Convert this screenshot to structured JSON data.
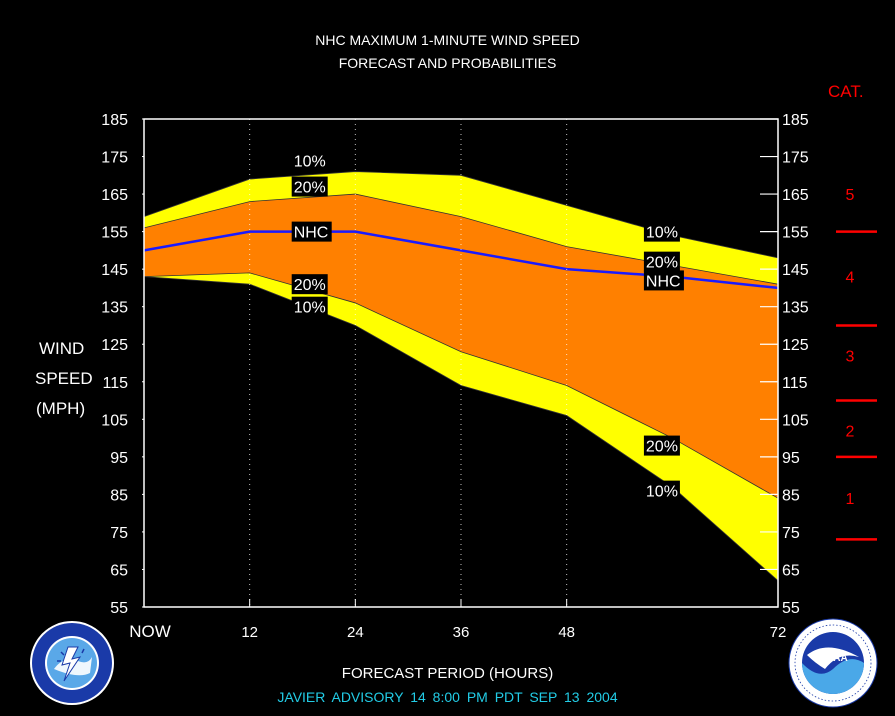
{
  "title_lines": [
    "NHC MAXIMUM 1-MINUTE WIND SPEED",
    "FORECAST AND PROBABILITIES"
  ],
  "ylabel_lines": [
    "WIND",
    "SPEED",
    "(MPH)"
  ],
  "xlabel": "FORECAST PERIOD (HOURS)",
  "footer": "JAVIER   ADVISORY  14 8:00  PM  PDT  SEP  13  2004",
  "category_header": "CAT.",
  "colors": {
    "band_10": "#ffff00",
    "band_20": "#ff8000",
    "nhc_line": "#1a1aff",
    "category": "#ff0000",
    "footer": "#22cce6"
  },
  "chart_data": {
    "type": "area",
    "x_tick_labels": [
      "NOW",
      "12",
      "24",
      "36",
      "48",
      "72"
    ],
    "x_ticks": [
      0,
      12,
      24,
      36,
      48,
      72
    ],
    "xlim": [
      0,
      72
    ],
    "ylim": [
      55,
      185
    ],
    "y_ticks": [
      55,
      65,
      75,
      85,
      95,
      105,
      115,
      125,
      135,
      145,
      155,
      165,
      175,
      185
    ],
    "grid": "vertical dotted at forecast hours",
    "x": [
      0,
      12,
      24,
      36,
      48,
      60,
      72
    ],
    "series": [
      {
        "name": "10%",
        "values": [
          159,
          169,
          171,
          170,
          162,
          154,
          148
        ]
      },
      {
        "name": "20%",
        "values": [
          156,
          163,
          165,
          159,
          151,
          146,
          141
        ]
      },
      {
        "name": "NHC",
        "values": [
          150,
          155,
          155,
          150,
          145,
          143,
          140
        ]
      },
      {
        "name": "20%",
        "values": [
          143,
          144,
          136,
          123,
          114,
          100,
          84
        ]
      },
      {
        "name": "10%",
        "values": [
          143,
          141,
          130,
          114,
          106,
          87,
          62
        ]
      }
    ],
    "annotations": [
      {
        "text": "10%",
        "x": 17,
        "y": 174
      },
      {
        "text": "20%",
        "x": 17,
        "y": 167
      },
      {
        "text": "NHC",
        "x": 17,
        "y": 155
      },
      {
        "text": "20%",
        "x": 17,
        "y": 141
      },
      {
        "text": "10%",
        "x": 17,
        "y": 135
      },
      {
        "text": "10%",
        "x": 57,
        "y": 155
      },
      {
        "text": "20%",
        "x": 57,
        "y": 147
      },
      {
        "text": "NHC",
        "x": 57,
        "y": 142
      },
      {
        "text": "20%",
        "x": 57,
        "y": 98
      },
      {
        "text": "10%",
        "x": 57,
        "y": 86
      }
    ],
    "categories": [
      {
        "label": "5",
        "y": 165
      },
      {
        "label": "4",
        "y": 143
      },
      {
        "label": "3",
        "y": 122
      },
      {
        "label": "2",
        "y": 102
      },
      {
        "label": "1",
        "y": 84
      }
    ],
    "category_boundaries": [
      155,
      130,
      110,
      95,
      73
    ]
  }
}
